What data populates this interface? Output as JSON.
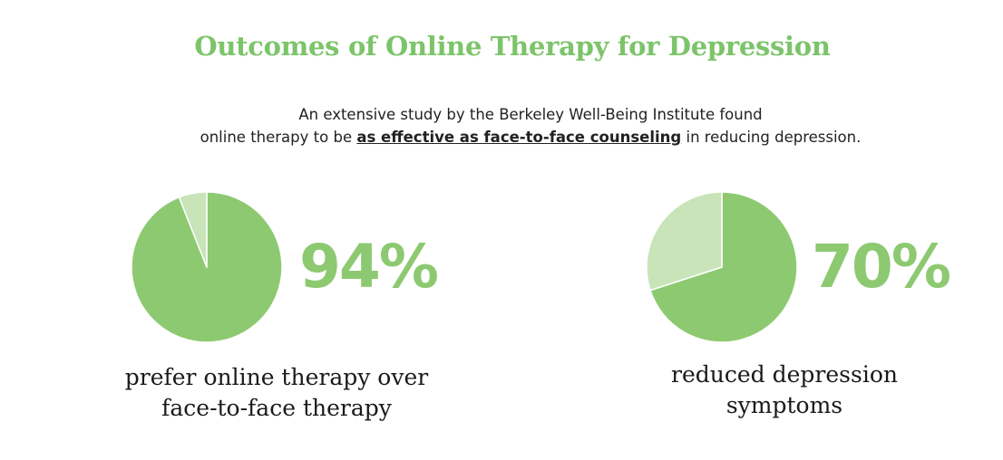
{
  "title": "Outcomes of Online Therapy for Depression",
  "subtitle": {
    "line1": "An extensive study by the Berkeley Well-Being Institute found",
    "line2_pre": "online therapy to be ",
    "line2_emph": "as effective as face-to-face counseling",
    "line2_post": " in reducing depression."
  },
  "colors": {
    "title": "#7cc46a",
    "main_slice": "#8dc970",
    "rest_slice": "#c8e4b8",
    "percent_text": "#8dc970",
    "slice_border": "#ffffff"
  },
  "chart_data": [
    {
      "type": "pie",
      "values": [
        94,
        6
      ],
      "label": "94%",
      "caption_lines": [
        "prefer online therapy over",
        "face-to-face therapy"
      ]
    },
    {
      "type": "pie",
      "values": [
        70,
        30
      ],
      "label": "70%",
      "caption_lines": [
        "reduced depression",
        "symptoms"
      ]
    }
  ]
}
